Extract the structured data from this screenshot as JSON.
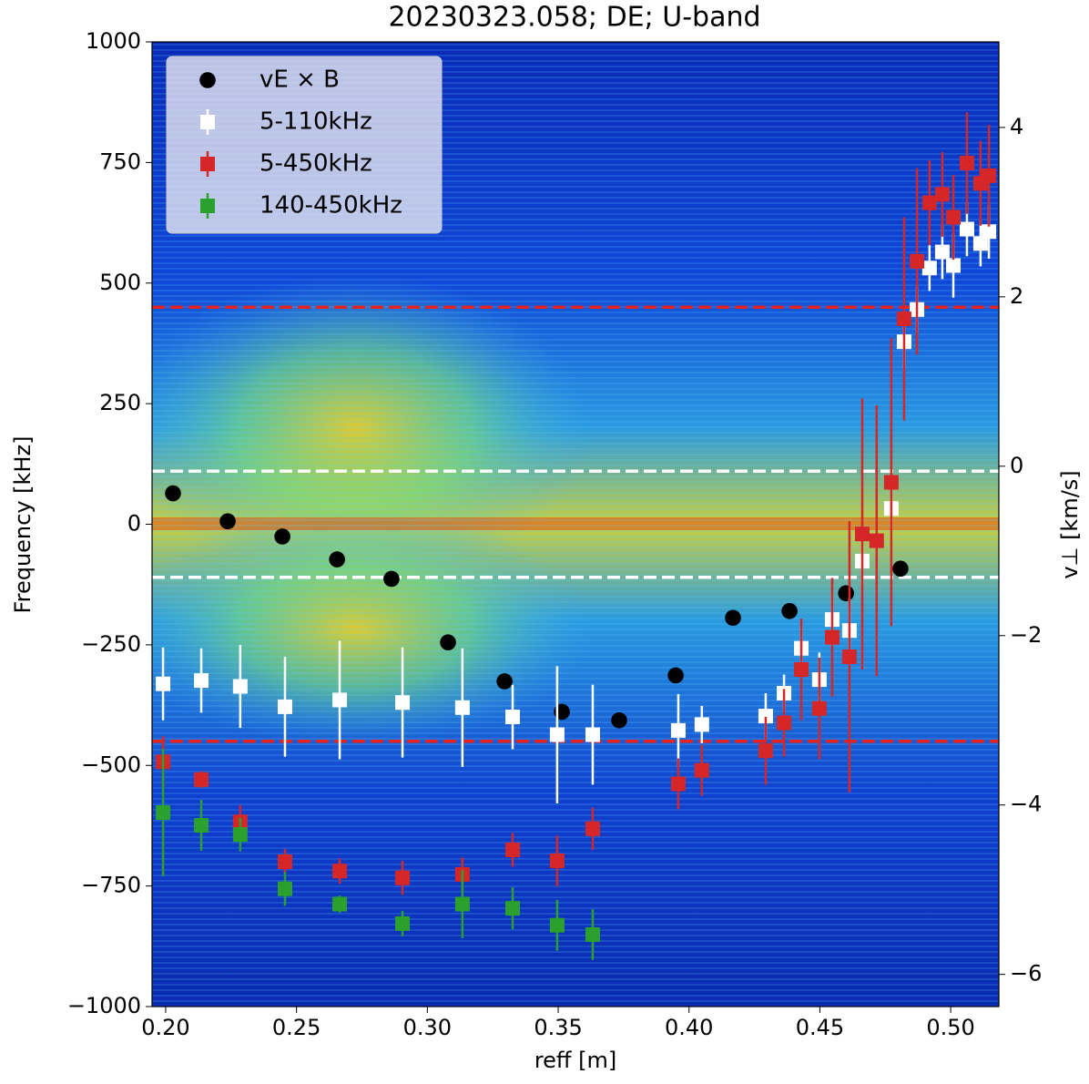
{
  "chart_data": {
    "type": "scatter",
    "title": "20230323.058; DE; U-band",
    "x_label": "reff [m]",
    "y_label": "Frequency [kHz]",
    "y2_label": "v⊥ [km/s]",
    "xlim": [
      0.1948,
      0.5184
    ],
    "ylim": [
      -1000,
      1000
    ],
    "y2lim": [
      -6.38,
      5.01
    ],
    "xticks": [
      {
        "value": 0.2,
        "label": "0.20"
      },
      {
        "value": 0.25,
        "label": "0.25"
      },
      {
        "value": 0.3,
        "label": "0.30"
      },
      {
        "value": 0.35,
        "label": "0.35"
      },
      {
        "value": 0.4,
        "label": "0.40"
      },
      {
        "value": 0.45,
        "label": "0.45"
      },
      {
        "value": 0.5,
        "label": "0.50"
      }
    ],
    "yticks": [
      {
        "value": -1000,
        "label": "−1000"
      },
      {
        "value": -750,
        "label": "−750"
      },
      {
        "value": -500,
        "label": "−500"
      },
      {
        "value": -250,
        "label": "−250"
      },
      0,
      250,
      500,
      750,
      1000
    ],
    "y2ticks": [
      {
        "value": -6,
        "label": "−6"
      },
      {
        "value": -4,
        "label": "−4"
      },
      {
        "value": -2,
        "label": "−2"
      },
      0,
      2,
      4
    ],
    "hlines": [
      {
        "value": 450,
        "color": "#e8231e"
      },
      {
        "value": -450,
        "color": "#e8231e"
      },
      {
        "value": 110,
        "color": "#ffffff"
      },
      {
        "value": -110,
        "color": "#ffffff"
      }
    ],
    "legend": "upper left",
    "series": [
      {
        "name": "vE × B",
        "color": "#000000",
        "marker": "circle",
        "axis": "y2",
        "x": [
          0.2028,
          0.2237,
          0.2446,
          0.2655,
          0.2863,
          0.3079,
          0.3295,
          0.3514,
          0.3733,
          0.3949,
          0.4168,
          0.4384,
          0.46,
          0.4808
        ],
        "values": [
          -0.32,
          -0.65,
          -0.83,
          -1.1,
          -1.33,
          -2.08,
          -2.54,
          -2.9,
          -3.0,
          -2.47,
          -1.79,
          -1.71,
          -1.5,
          -1.21
        ]
      },
      {
        "name": "5-110kHz",
        "color": "#ffffff",
        "marker": "square",
        "axis": "y2",
        "x": [
          0.199,
          0.2136,
          0.2285,
          0.2456,
          0.2665,
          0.2905,
          0.3134,
          0.3326,
          0.3496,
          0.3632,
          0.3959,
          0.4049,
          0.4293,
          0.4363,
          0.4429,
          0.4498,
          0.4547,
          0.4613,
          0.4662,
          0.4773,
          0.4822,
          0.4871,
          0.4919,
          0.4968,
          0.501,
          0.5062,
          0.5114,
          0.5146
        ],
        "values": [
          -2.57,
          -2.53,
          -2.6,
          -2.84,
          -2.76,
          -2.79,
          -2.85,
          -2.96,
          -3.17,
          -3.17,
          -3.12,
          -3.05,
          -2.95,
          -2.68,
          -2.15,
          -2.52,
          -1.81,
          -1.94,
          -1.12,
          -0.5,
          1.47,
          1.85,
          2.34,
          2.53,
          2.37,
          2.8,
          2.63,
          2.77
        ],
        "errors": [
          0.43,
          0.38,
          0.49,
          0.59,
          0.7,
          0.65,
          0.7,
          0.38,
          0.81,
          0.59,
          0.43,
          0.22,
          0.27,
          0.22,
          0.27,
          0.32,
          0.32,
          0.38,
          0.27,
          0.32,
          0.32,
          0.27,
          0.27,
          0.32,
          0.38,
          0.32,
          0.27,
          0.32
        ]
      },
      {
        "name": "5-450kHz",
        "color": "#d62728",
        "marker": "square",
        "axis": "y2",
        "x": [
          0.199,
          0.2136,
          0.2285,
          0.2456,
          0.2665,
          0.2905,
          0.3134,
          0.3326,
          0.3496,
          0.3632,
          0.3959,
          0.4049,
          0.4293,
          0.4363,
          0.4429,
          0.4498,
          0.4547,
          0.4613,
          0.4662,
          0.4717,
          0.4773,
          0.4822,
          0.4871,
          0.4919,
          0.4968,
          0.501,
          0.5062,
          0.5114,
          0.5146
        ],
        "values": [
          -3.49,
          -3.7,
          -4.2,
          -4.67,
          -4.78,
          -4.86,
          -4.82,
          -4.53,
          -4.66,
          -4.28,
          -3.75,
          -3.59,
          -3.36,
          -3.03,
          -2.4,
          -2.86,
          -2.02,
          -2.25,
          -0.8,
          -0.88,
          -0.19,
          1.74,
          2.42,
          3.11,
          3.21,
          2.94,
          3.58,
          3.34,
          3.43
        ],
        "errors": [
          0.3,
          0.1,
          0.2,
          0.15,
          0.15,
          0.2,
          0.2,
          0.2,
          0.3,
          0.25,
          0.3,
          0.3,
          0.4,
          0.4,
          0.6,
          0.6,
          0.7,
          1.6,
          1.6,
          1.6,
          1.7,
          1.2,
          1.1,
          0.5,
          0.5,
          0.5,
          0.6,
          0.5,
          0.6
        ]
      },
      {
        "name": "140-450kHz",
        "color": "#2ca02c",
        "marker": "square",
        "axis": "y2",
        "x": [
          0.199,
          0.2136,
          0.2285,
          0.2456,
          0.2665,
          0.2905,
          0.3134,
          0.3326,
          0.3496,
          0.3632
        ],
        "values": [
          -4.09,
          -4.24,
          -4.35,
          -4.99,
          -5.17,
          -5.4,
          -5.17,
          -5.22,
          -5.42,
          -5.53
        ],
        "errors": [
          0.75,
          0.3,
          0.2,
          0.2,
          0.1,
          0.15,
          0.4,
          0.25,
          0.3,
          0.3
        ]
      }
    ]
  }
}
